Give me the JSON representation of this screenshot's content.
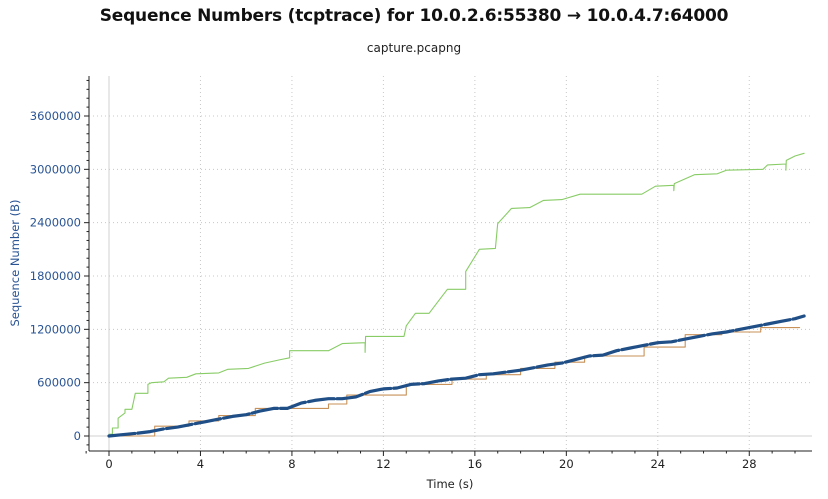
{
  "chart_data": {
    "type": "line",
    "title": "Sequence Numbers (tcptrace) for 10.0.2.6:55380 → 10.0.4.7:64000",
    "subtitle": "capture.pcapng",
    "xlabel": "Time (s)",
    "ylabel": "Sequence Number (B)",
    "xlim": [
      -1.0,
      30.4
    ],
    "ylim": [
      -150000,
      4050000
    ],
    "xticks": [
      0,
      4,
      8,
      12,
      16,
      20,
      24,
      28
    ],
    "yticks": [
      0,
      600000,
      1200000,
      1800000,
      2400000,
      3000000,
      3600000
    ],
    "grid": true,
    "colors": {
      "data": "#1f4f86",
      "window": "#88cc66",
      "ack": "#c8915a",
      "axis_text": "#2a5494",
      "grid": "#c8c8c8"
    },
    "series": [
      {
        "role": "receive-window",
        "points": [
          [
            0.0,
            20000
          ],
          [
            0.15,
            20000
          ],
          [
            0.15,
            90000
          ],
          [
            0.4,
            90000
          ],
          [
            0.4,
            200000
          ],
          [
            0.7,
            260000
          ],
          [
            0.7,
            300000
          ],
          [
            1.0,
            300000
          ],
          [
            1.15,
            480000
          ],
          [
            1.7,
            480000
          ],
          [
            1.7,
            580000
          ],
          [
            1.85,
            600000
          ],
          [
            2.4,
            610000
          ],
          [
            2.6,
            650000
          ],
          [
            3.4,
            660000
          ],
          [
            3.8,
            700000
          ],
          [
            4.8,
            710000
          ],
          [
            5.2,
            750000
          ],
          [
            6.1,
            760000
          ],
          [
            6.8,
            820000
          ],
          [
            7.5,
            860000
          ],
          [
            7.9,
            880000
          ],
          [
            7.9,
            960000
          ],
          [
            9.6,
            960000
          ],
          [
            10.2,
            1040000
          ],
          [
            11.2,
            1050000
          ],
          [
            11.2,
            940000
          ],
          [
            11.22,
            1120000
          ],
          [
            12.9,
            1120000
          ],
          [
            13.0,
            1240000
          ],
          [
            13.4,
            1380000
          ],
          [
            14.0,
            1380000
          ],
          [
            14.5,
            1550000
          ],
          [
            14.8,
            1650000
          ],
          [
            15.6,
            1650000
          ],
          [
            15.6,
            1850000
          ],
          [
            16.2,
            2100000
          ],
          [
            16.9,
            2110000
          ],
          [
            17.0,
            2390000
          ],
          [
            17.6,
            2560000
          ],
          [
            18.4,
            2570000
          ],
          [
            19.0,
            2650000
          ],
          [
            19.8,
            2660000
          ],
          [
            20.6,
            2720000
          ],
          [
            23.3,
            2720000
          ],
          [
            23.9,
            2810000
          ],
          [
            24.7,
            2820000
          ],
          [
            24.7,
            2760000
          ],
          [
            24.72,
            2840000
          ],
          [
            25.6,
            2940000
          ],
          [
            26.6,
            2950000
          ],
          [
            27.0,
            2990000
          ],
          [
            28.6,
            3000000
          ],
          [
            28.8,
            3050000
          ],
          [
            29.6,
            3060000
          ],
          [
            29.6,
            2990000
          ],
          [
            29.62,
            3100000
          ],
          [
            30.0,
            3150000
          ],
          [
            30.4,
            3180000
          ]
        ]
      },
      {
        "role": "ack",
        "points": [
          [
            0.0,
            0
          ],
          [
            2.0,
            0
          ],
          [
            2.0,
            110000
          ],
          [
            3.5,
            110000
          ],
          [
            3.5,
            170000
          ],
          [
            4.8,
            170000
          ],
          [
            4.8,
            230000
          ],
          [
            6.4,
            230000
          ],
          [
            6.4,
            310000
          ],
          [
            9.6,
            310000
          ],
          [
            9.6,
            360000
          ],
          [
            10.4,
            360000
          ],
          [
            10.4,
            460000
          ],
          [
            13.0,
            460000
          ],
          [
            13.0,
            580000
          ],
          [
            15.0,
            580000
          ],
          [
            15.0,
            640000
          ],
          [
            16.5,
            640000
          ],
          [
            16.5,
            690000
          ],
          [
            18.0,
            690000
          ],
          [
            18.0,
            760000
          ],
          [
            19.5,
            760000
          ],
          [
            19.5,
            830000
          ],
          [
            20.8,
            830000
          ],
          [
            20.8,
            900000
          ],
          [
            23.4,
            900000
          ],
          [
            23.4,
            1000000
          ],
          [
            25.2,
            1000000
          ],
          [
            25.2,
            1140000
          ],
          [
            26.8,
            1140000
          ],
          [
            26.8,
            1170000
          ],
          [
            28.5,
            1170000
          ],
          [
            28.5,
            1220000
          ],
          [
            30.2,
            1220000
          ]
        ]
      },
      {
        "role": "data",
        "points": [
          [
            0.0,
            0
          ],
          [
            0.8,
            20000
          ],
          [
            1.2,
            30000
          ],
          [
            1.8,
            50000
          ],
          [
            2.4,
            80000
          ],
          [
            3.0,
            100000
          ],
          [
            3.6,
            130000
          ],
          [
            4.2,
            160000
          ],
          [
            4.8,
            190000
          ],
          [
            5.4,
            220000
          ],
          [
            6.0,
            240000
          ],
          [
            6.6,
            280000
          ],
          [
            7.2,
            310000
          ],
          [
            7.8,
            310000
          ],
          [
            8.4,
            370000
          ],
          [
            9.0,
            400000
          ],
          [
            9.6,
            420000
          ],
          [
            10.2,
            420000
          ],
          [
            10.8,
            440000
          ],
          [
            11.4,
            500000
          ],
          [
            12.0,
            530000
          ],
          [
            12.6,
            540000
          ],
          [
            13.2,
            580000
          ],
          [
            13.8,
            590000
          ],
          [
            14.4,
            620000
          ],
          [
            15.0,
            640000
          ],
          [
            15.6,
            650000
          ],
          [
            16.2,
            690000
          ],
          [
            16.8,
            700000
          ],
          [
            17.4,
            720000
          ],
          [
            18.0,
            740000
          ],
          [
            18.6,
            770000
          ],
          [
            19.2,
            800000
          ],
          [
            19.8,
            820000
          ],
          [
            20.4,
            860000
          ],
          [
            21.0,
            900000
          ],
          [
            21.6,
            910000
          ],
          [
            22.2,
            960000
          ],
          [
            22.8,
            990000
          ],
          [
            23.4,
            1020000
          ],
          [
            24.0,
            1050000
          ],
          [
            24.6,
            1060000
          ],
          [
            25.2,
            1090000
          ],
          [
            25.8,
            1120000
          ],
          [
            26.4,
            1150000
          ],
          [
            27.0,
            1170000
          ],
          [
            27.6,
            1200000
          ],
          [
            28.2,
            1230000
          ],
          [
            28.8,
            1260000
          ],
          [
            29.4,
            1290000
          ],
          [
            30.0,
            1320000
          ],
          [
            30.4,
            1350000
          ]
        ]
      }
    ]
  }
}
